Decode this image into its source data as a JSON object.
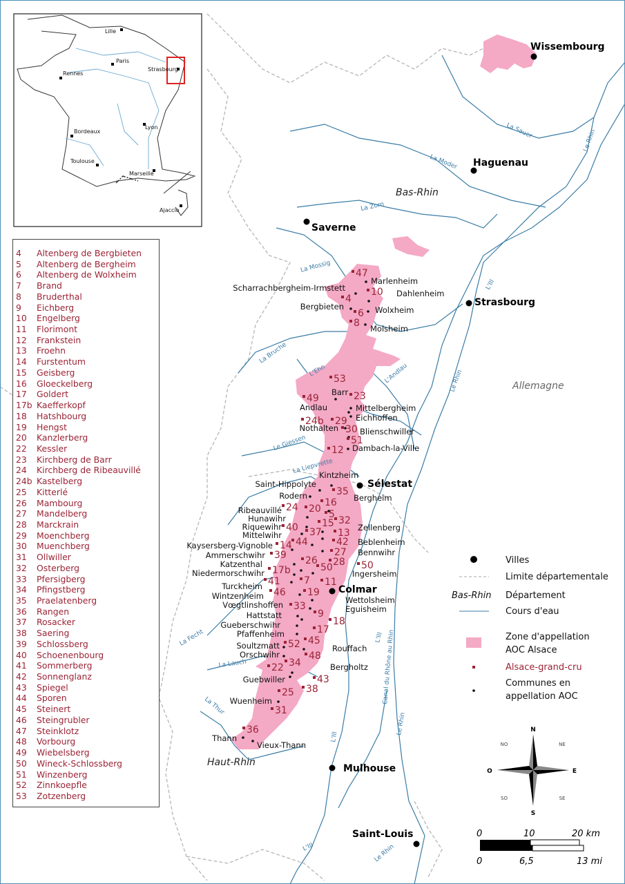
{
  "colors": {
    "aoc_zone": "#f4a9c5",
    "grand_cru": "#9b2335",
    "river": "#3a7ca5",
    "boundary": "#aaaaaa",
    "inset_box": "#e02020"
  },
  "cities": [
    "Wissembourg",
    "Haguenau",
    "Saverne",
    "Strasbourg",
    "Sélestat",
    "Colmar",
    "Mulhouse",
    "Saint-Louis"
  ],
  "departments": [
    "Bas-Rhin",
    "Haut-Rhin"
  ],
  "country": "Allemagne",
  "rivers": [
    "La Sauer",
    "La Moder",
    "La Zorn",
    "La Mossig",
    "La Bruche",
    "L'Ehn",
    "L'Andlau",
    "Le Giessen",
    "La Liepvrette",
    "La Fecht",
    "La Lauch",
    "La Thur",
    "L'Ill",
    "L'Ill",
    "L'Ill",
    "L'Ill",
    "Le Rhin",
    "Le Rhin",
    "Le Rhin",
    "Le Rhin",
    "Canal du Rhône au Rhin"
  ],
  "communes": [
    "Marlenheim",
    "Scharrachbergheim-Irmstett",
    "Dahlenheim",
    "Bergbieten",
    "Wolxheim",
    "Molsheim",
    "Barr",
    "Andlau",
    "Mittelbergheim",
    "Eichhoffen",
    "Nothalten",
    "Blienschwiller",
    "Dambach-la-Ville",
    "Kintzheim",
    "Saint-Hippolyte",
    "Rodern",
    "Bergheim",
    "Ribeauvillé",
    "Hunawihr",
    "Riquewihr",
    "Zellenberg",
    "Mittelwihr",
    "Beblenheim",
    "Kaysersberg-Vignoble",
    "Ammerschwihr",
    "Bennwihr",
    "Katzenthal",
    "Niedermorschwihr",
    "Ingersheim",
    "Turckheim",
    "Wintzenheim",
    "Wettolsheim",
    "Vœgtlinshoffen",
    "Eguisheim",
    "Hattstatt",
    "Gueberschwihr",
    "Pfaffenheim",
    "Soultzmatt",
    "Rouffach",
    "Orschwihr",
    "Bergholtz",
    "Guebwiller",
    "Wuenheim",
    "Thann",
    "Vieux-Thann"
  ],
  "cru_numbers": [
    "47",
    "10",
    "4",
    "6",
    "8",
    "53",
    "23",
    "49",
    "24b",
    "29",
    "30",
    "51",
    "12",
    "35",
    "16",
    "24",
    "20",
    "5",
    "32",
    "15",
    "37",
    "40",
    "13",
    "44",
    "42",
    "14",
    "27",
    "39",
    "28",
    "26",
    "50",
    "50",
    "17b",
    "41",
    "7",
    "11",
    "46",
    "19",
    "33",
    "9",
    "18",
    "17",
    "52",
    "45",
    "48",
    "34",
    "22",
    "43",
    "38",
    "25",
    "31",
    "36"
  ],
  "inset": {
    "cities": [
      "Lille",
      "Paris",
      "Rennes",
      "Strasbourg",
      "Bordeaux",
      "Lyon",
      "Toulouse",
      "Marseille",
      "Ajaccio"
    ]
  },
  "grand_cru_list": [
    {
      "n": "4",
      "name": "Altenberg de Bergbieten"
    },
    {
      "n": "5",
      "name": "Altenberg de Bergheim"
    },
    {
      "n": "6",
      "name": "Altenberg de Wolxheim"
    },
    {
      "n": "7",
      "name": "Brand"
    },
    {
      "n": "8",
      "name": "Bruderthal"
    },
    {
      "n": "9",
      "name": "Eichberg"
    },
    {
      "n": "10",
      "name": "Engelberg"
    },
    {
      "n": "11",
      "name": "Florimont"
    },
    {
      "n": "12",
      "name": "Frankstein"
    },
    {
      "n": "13",
      "name": "Froehn"
    },
    {
      "n": "14",
      "name": "Furstentum"
    },
    {
      "n": "15",
      "name": "Geisberg"
    },
    {
      "n": "16",
      "name": "Gloeckelberg"
    },
    {
      "n": "17",
      "name": "Goldert"
    },
    {
      "n": "17b",
      "name": "Kaefferkopf"
    },
    {
      "n": "18",
      "name": "Hatshbourg"
    },
    {
      "n": "19",
      "name": "Hengst"
    },
    {
      "n": "20",
      "name": "Kanzlerberg"
    },
    {
      "n": "22",
      "name": "Kessler"
    },
    {
      "n": "23",
      "name": "Kirchberg de Barr"
    },
    {
      "n": "24",
      "name": "Kirchberg de Ribeauvillé"
    },
    {
      "n": "24b",
      "name": "Kastelberg"
    },
    {
      "n": "25",
      "name": "Kitterlé"
    },
    {
      "n": "26",
      "name": "Mambourg"
    },
    {
      "n": "27",
      "name": "Mandelberg"
    },
    {
      "n": "28",
      "name": "Marckrain"
    },
    {
      "n": "29",
      "name": "Moenchberg"
    },
    {
      "n": "30",
      "name": "Muenchberg"
    },
    {
      "n": "31",
      "name": "Ollwiller"
    },
    {
      "n": "32",
      "name": "Osterberg"
    },
    {
      "n": "33",
      "name": "Pfersigberg"
    },
    {
      "n": "34",
      "name": "Pfingstberg"
    },
    {
      "n": "35",
      "name": "Praelatenberg"
    },
    {
      "n": "36",
      "name": "Rangen"
    },
    {
      "n": "37",
      "name": "Rosacker"
    },
    {
      "n": "38",
      "name": "Saering"
    },
    {
      "n": "39",
      "name": "Schlossberg"
    },
    {
      "n": "40",
      "name": "Schoenenbourg"
    },
    {
      "n": "41",
      "name": "Sommerberg"
    },
    {
      "n": "42",
      "name": "Sonnenglanz"
    },
    {
      "n": "43",
      "name": "Spiegel"
    },
    {
      "n": "44",
      "name": "Sporen"
    },
    {
      "n": "45",
      "name": "Steinert"
    },
    {
      "n": "46",
      "name": "Steingrubler"
    },
    {
      "n": "47",
      "name": "Steinklotz"
    },
    {
      "n": "48",
      "name": "Vorbourg"
    },
    {
      "n": "49",
      "name": "Wiebelsberg"
    },
    {
      "n": "50",
      "name": "Wineck-Schlossberg"
    },
    {
      "n": "51",
      "name": "Winzenberg"
    },
    {
      "n": "52",
      "name": "Zinnkoepfle"
    },
    {
      "n": "53",
      "name": "Zotzenberg"
    }
  ],
  "legend": {
    "villes": "Villes",
    "limite": "Limite départementale",
    "dept_sample": "Bas-Rhin",
    "departement": "Département",
    "cours": "Cours d'eau",
    "zone_1": "Zone d'appellation",
    "zone_2": "AOC Alsace",
    "grand_cru": "Alsace-grand-cru",
    "communes_1": "Communes en",
    "communes_2": "appellation AOC"
  },
  "compass": {
    "n": "N",
    "ne": "NE",
    "e": "E",
    "se": "SE",
    "s": "S",
    "so": "SO",
    "o": "O",
    "no": "NO"
  },
  "scale": {
    "km": [
      "0",
      "10",
      "20 km"
    ],
    "mi": [
      "0",
      "6,5",
      "13 mi"
    ]
  }
}
